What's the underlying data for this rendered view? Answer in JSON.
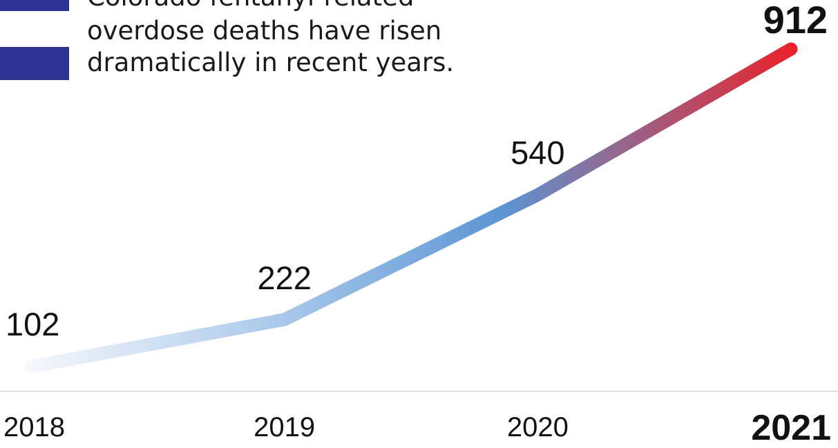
{
  "caption": {
    "lines": [
      "Colorado fentanyl-related",
      "overdose deaths have risen",
      "dramatically in recent years."
    ],
    "marker_color": "#2e3192"
  },
  "chart_data": {
    "type": "line",
    "title": "Colorado fentanyl-related overdose deaths have risen dramatically in recent years.",
    "x": [
      "2018",
      "2019",
      "2020",
      "2021"
    ],
    "series": [
      {
        "values": [
          102,
          222,
          540,
          912
        ]
      }
    ],
    "xlabel": "",
    "ylabel": "",
    "ylim": [
      0,
      1000
    ],
    "grid": false,
    "legend": "none",
    "highlight_index": 3,
    "gradient_colors": [
      "#f4f7fc",
      "#a9c8ea",
      "#5b95d3",
      "#e8232b"
    ],
    "axis_line_color": "#e0e0e0"
  }
}
